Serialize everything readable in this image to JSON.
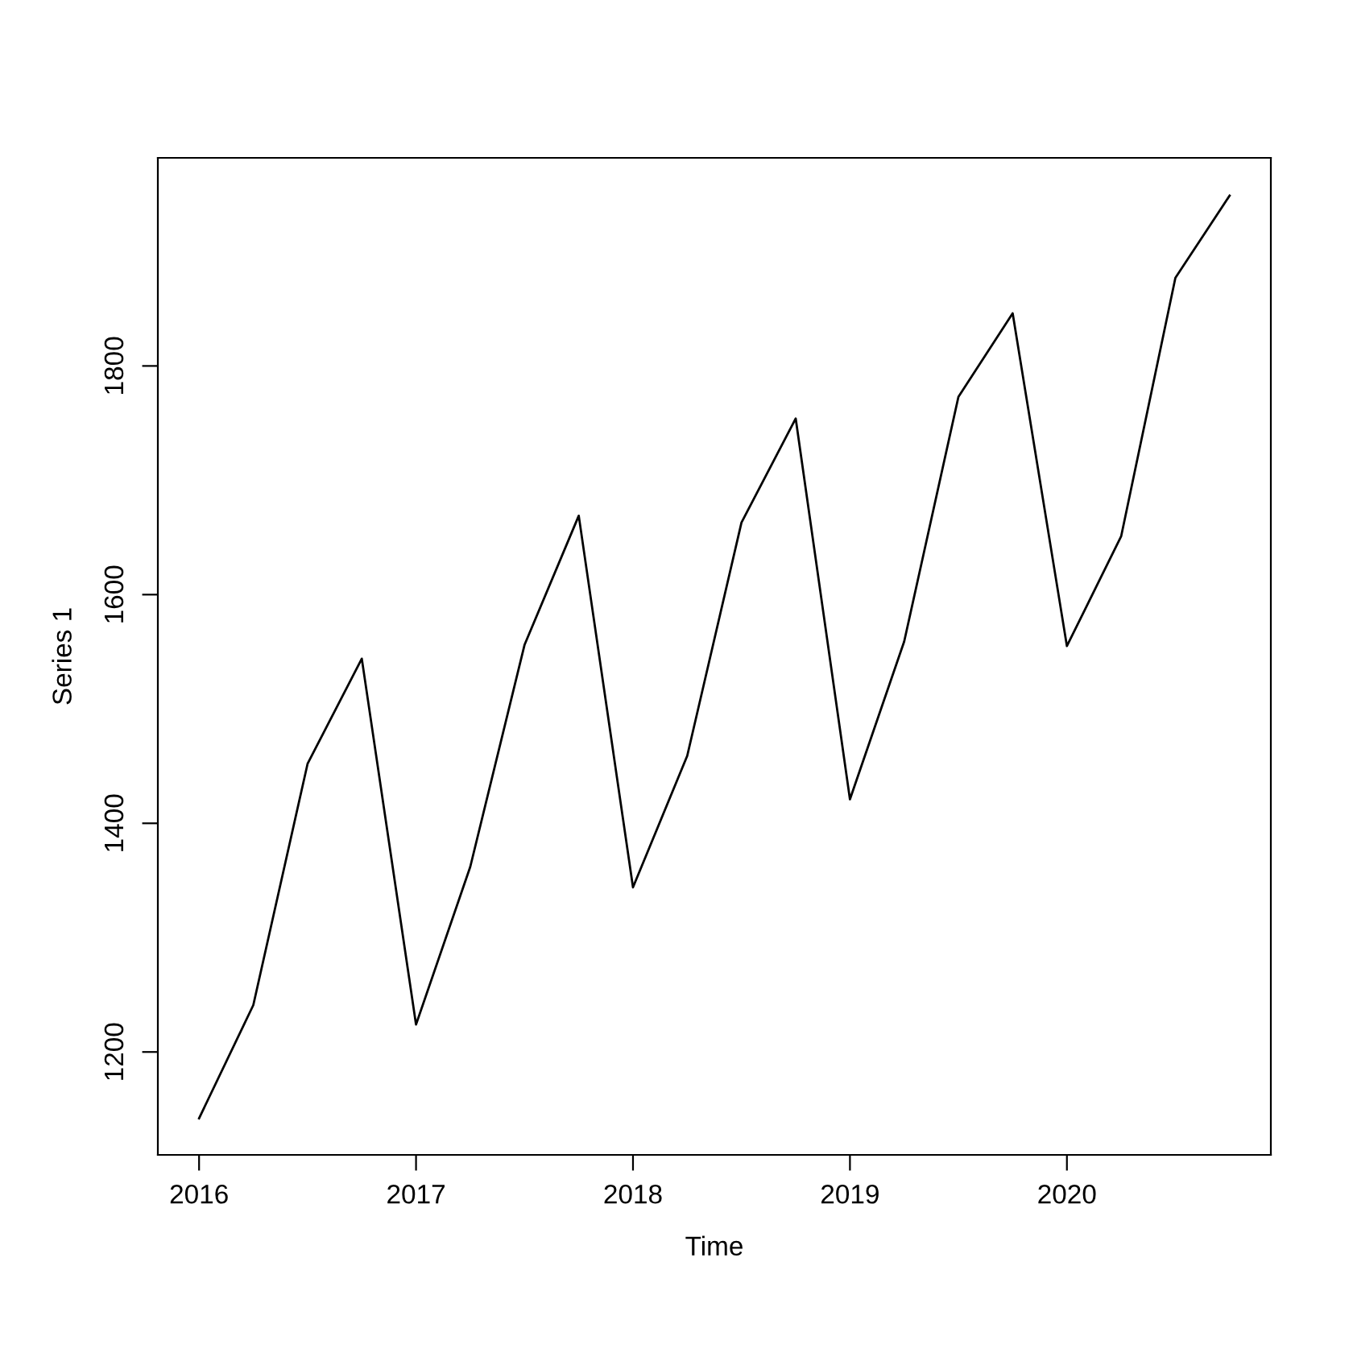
{
  "chart_data": {
    "type": "line",
    "xlabel": "Time",
    "ylabel": "Series 1",
    "x": [
      2016,
      2016.25,
      2016.5,
      2016.75,
      2017,
      2017.25,
      2017.5,
      2017.75,
      2018,
      2018.25,
      2018.5,
      2018.75,
      2019,
      2019.25,
      2019.5,
      2019.75,
      2020,
      2020.25,
      2020.5,
      2020.75
    ],
    "series": [
      {
        "color": "#000000",
        "values": [
          1142,
          1241,
          1452,
          1544,
          1224,
          1362,
          1556,
          1669,
          1344,
          1459,
          1663,
          1754,
          1421,
          1559,
          1773,
          1846,
          1555,
          1651,
          1877,
          1949
        ]
      }
    ],
    "xlim": [
      2015.81,
      2020.94
    ],
    "ylim": [
      1110,
      1982
    ],
    "xticks": [
      2016,
      2017,
      2018,
      2019,
      2020
    ],
    "yticks": [
      1200,
      1400,
      1600,
      1800
    ],
    "grid": false,
    "legend": false,
    "line_style": "solid",
    "marker": "none"
  }
}
